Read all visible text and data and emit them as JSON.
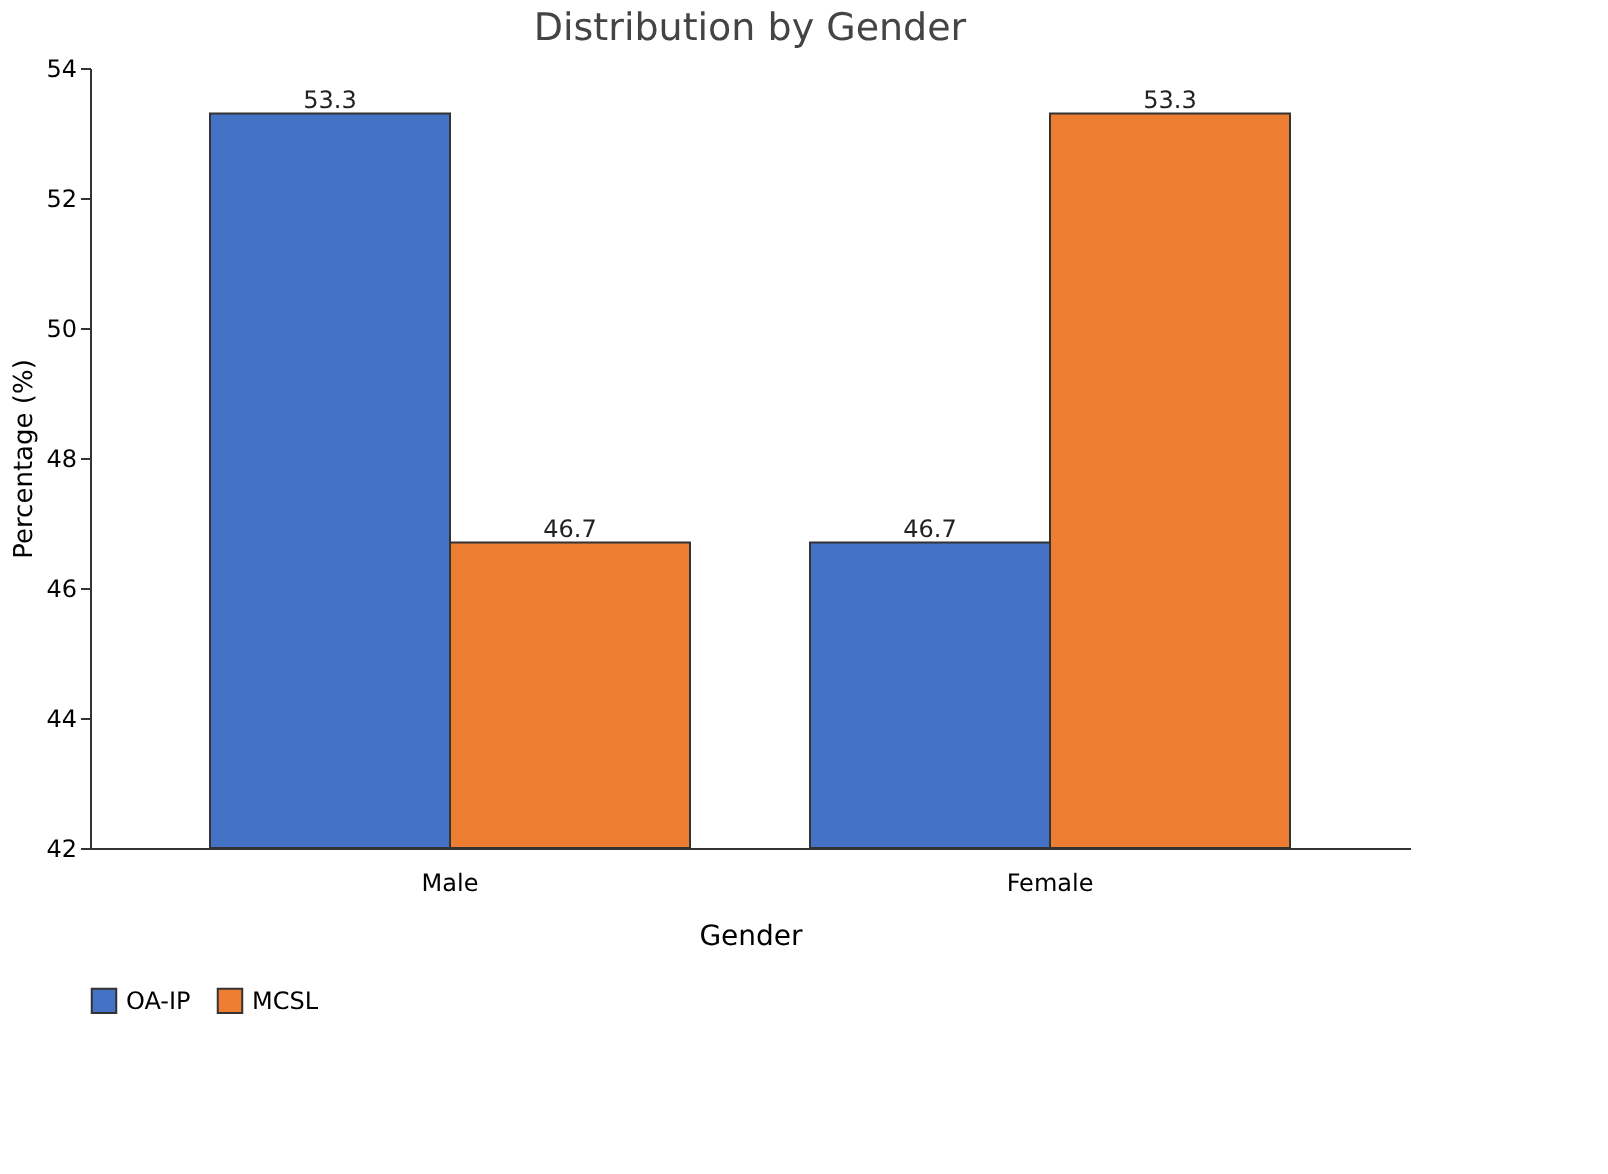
{
  "chart_data": {
    "type": "bar",
    "title": "Distribution by Gender",
    "xlabel": "Gender",
    "ylabel": "Percentage (%)",
    "categories": [
      "Male",
      "Female"
    ],
    "series": [
      {
        "name": "OA-IP",
        "color": "#4472c4",
        "values": [
          53.3,
          46.7
        ]
      },
      {
        "name": "MCSL",
        "color": "#ed7d31",
        "values": [
          46.7,
          53.3
        ]
      }
    ],
    "ylim": [
      42,
      54
    ],
    "yticks": [
      42,
      44,
      46,
      48,
      50,
      52,
      54
    ],
    "grid": false,
    "legend": "bottom",
    "data_labels": true
  }
}
